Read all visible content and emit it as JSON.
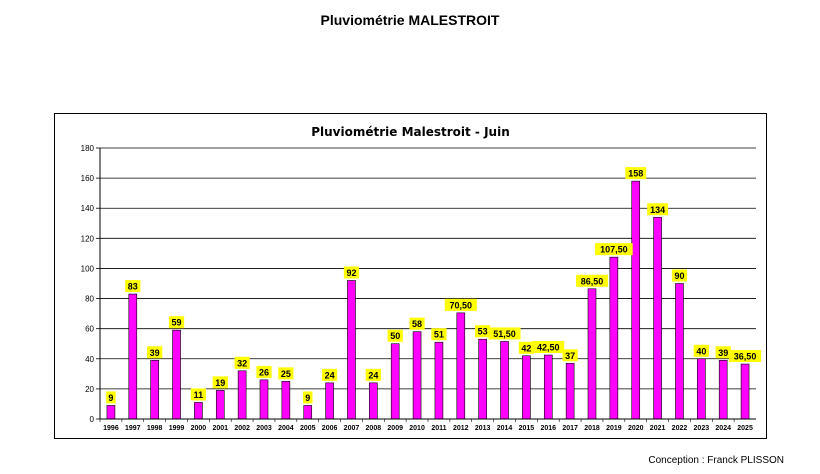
{
  "page": {
    "title": "Pluviométrie MALESTROIT",
    "credit": "Conception : Franck PLISSON"
  },
  "colors": {
    "bar": "#ff00ff",
    "bar_edge": "#000000",
    "label_bg": "#ffff00",
    "grid": "#000000"
  },
  "chart_data": {
    "type": "bar",
    "title": "Pluviométrie Malestroit - Juin",
    "xlabel": "",
    "ylabel": "",
    "ylim": [
      0,
      180
    ],
    "yticks": [
      0,
      20,
      40,
      60,
      80,
      100,
      120,
      140,
      160,
      180
    ],
    "grid": true,
    "legend": "none",
    "categories": [
      "1996",
      "1997",
      "1998",
      "1999",
      "2000",
      "2001",
      "2002",
      "2003",
      "2004",
      "2005",
      "2006",
      "2007",
      "2008",
      "2009",
      "2010",
      "2011",
      "2012",
      "2013",
      "2014",
      "2015",
      "2016",
      "2017",
      "2018",
      "2019",
      "2020",
      "2021",
      "2022",
      "2023",
      "2024",
      "2025"
    ],
    "values": [
      9,
      83,
      39,
      59,
      11,
      19,
      32,
      26,
      25,
      9,
      24,
      92,
      24,
      50,
      58,
      51,
      70.5,
      53,
      51.5,
      42,
      42.5,
      37,
      86.5,
      107.5,
      158,
      134,
      90,
      40,
      39,
      36.5
    ],
    "value_labels": [
      "9",
      "83",
      "39",
      "59",
      "11",
      "19",
      "32",
      "26",
      "25",
      "9",
      "24",
      "92",
      "24",
      "50",
      "58",
      "51",
      "70,50",
      "53",
      "51,50",
      "42",
      "42,50",
      "37",
      "86,50",
      "107,50",
      "158",
      "134",
      "90",
      "40",
      "39",
      "36,50"
    ]
  }
}
